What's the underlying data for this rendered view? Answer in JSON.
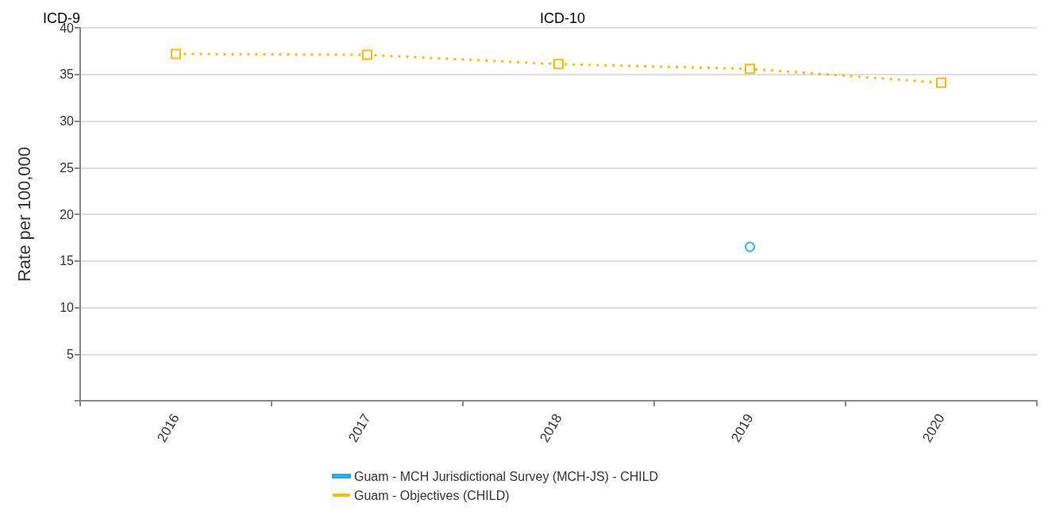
{
  "chart_data": {
    "type": "line",
    "ylabel": "Rate per 100,000",
    "categories": [
      "2016",
      "2017",
      "2018",
      "2019",
      "2020"
    ],
    "series": [
      {
        "name": "Guam - MCH Jurisdictional Survey (MCH-JS) - CHILD",
        "type": "scatter",
        "color": "#00a2e8",
        "marker": "circle",
        "values": [
          null,
          null,
          null,
          16.5,
          null
        ]
      },
      {
        "name": "Guam - Objectives (CHILD)",
        "color": "#ffb900",
        "marker": "square",
        "line_style": "dotted",
        "values": [
          37.2,
          37.1,
          36.1,
          35.6,
          34.1
        ]
      }
    ],
    "ylim": [
      0,
      40
    ],
    "yticks": [
      {
        "value": 0,
        "label": null
      },
      5,
      10,
      15,
      20,
      25,
      30,
      35,
      40
    ],
    "grid": "y",
    "legend": "bottom",
    "annotations": [
      "ICD-9",
      "ICD-10"
    ]
  }
}
